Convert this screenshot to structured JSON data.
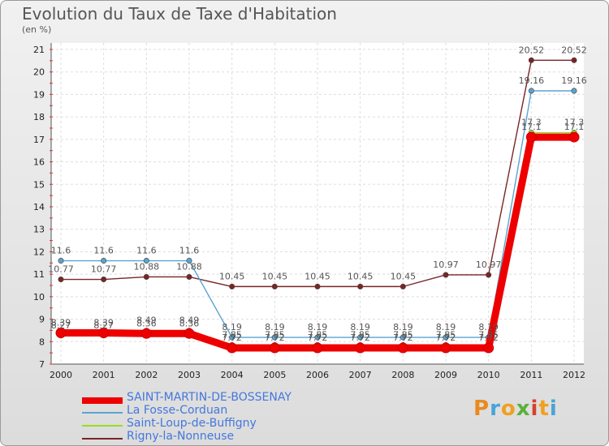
{
  "title": "Evolution du Taux de Taxe d'Habitation",
  "unit": "(en %)",
  "logo": [
    "P",
    "r",
    "o",
    "x",
    "i",
    "t",
    "i"
  ],
  "logo_colors": [
    "#e98a1f",
    "#4aa3d8",
    "#f0a01e",
    "#5ab03a",
    "#d8402a",
    "#f0a01e",
    "#4aa3d8"
  ],
  "chart_data": {
    "type": "line",
    "title": "Evolution du Taux de Taxe d'Habitation",
    "ylabel": "(en %)",
    "xlabel": "",
    "ylim": [
      7,
      21
    ],
    "yticks": [
      "7",
      "8",
      "9",
      "10",
      "11",
      "12",
      "13",
      "14",
      "15",
      "16",
      "17",
      "18",
      "19",
      "20",
      "21"
    ],
    "categories": [
      "2000",
      "2001",
      "2002",
      "2003",
      "2004",
      "2005",
      "2006",
      "2007",
      "2008",
      "2009",
      "2010",
      "2011",
      "2012"
    ],
    "series": [
      {
        "name": "SAINT-MARTIN-DE-BOSSENAY",
        "color": "#ee0000",
        "values": [
          8.39,
          8.39,
          8.36,
          8.36,
          7.72,
          7.72,
          7.72,
          7.72,
          7.72,
          7.72,
          7.72,
          17.1,
          17.1
        ],
        "labels": [
          "8.39",
          "8.39",
          "8.36",
          "8.36",
          "7.72",
          "7.72",
          "7.72",
          "7.72",
          "7.72",
          "7.72",
          "7.72",
          "17.1",
          "17.1"
        ]
      },
      {
        "name": "La Fosse-Corduan",
        "color": "#5ba3d0",
        "values": [
          11.6,
          11.6,
          11.6,
          11.6,
          8.19,
          8.19,
          8.19,
          8.19,
          8.19,
          8.19,
          8.19,
          19.16,
          19.16
        ],
        "labels": [
          "11.6",
          "11.6",
          "11.6",
          "11.6",
          "8.19",
          "8.19",
          "8.19",
          "8.19",
          "8.19",
          "8.19",
          "8.19",
          "19.16",
          "19.16"
        ]
      },
      {
        "name": "Saint-Loup-de-Buffigny",
        "color": "#99dd22",
        "values": [
          8.27,
          8.27,
          8.49,
          8.49,
          7.85,
          7.85,
          7.85,
          7.85,
          7.85,
          7.85,
          7.85,
          17.3,
          17.3
        ],
        "labels": [
          "8.27",
          "8.27",
          "8.49",
          "8.49",
          "7.85",
          "7.85",
          "7.85",
          "7.85",
          "7.85",
          "7.85",
          "7.85",
          "17.3",
          "17.3"
        ]
      },
      {
        "name": "Rigny-la-Nonneuse",
        "color": "#7a2525",
        "values": [
          10.77,
          10.77,
          10.88,
          10.88,
          10.45,
          10.45,
          10.45,
          10.45,
          10.45,
          10.97,
          10.97,
          20.52,
          20.52
        ],
        "labels": [
          "10.77",
          "10.77",
          "10.88",
          "10.88",
          "10.45",
          "10.45",
          "10.45",
          "10.45",
          "10.45",
          "10.97",
          "10.97",
          "20.52",
          "20.52"
        ]
      }
    ],
    "legend": {
      "position": "bottom-left",
      "items": [
        "SAINT-MARTIN-DE-BOSSENAY",
        "La Fosse-Corduan",
        "Saint-Loup-de-Buffigny",
        "Rigny-la-Nonneuse"
      ]
    }
  }
}
